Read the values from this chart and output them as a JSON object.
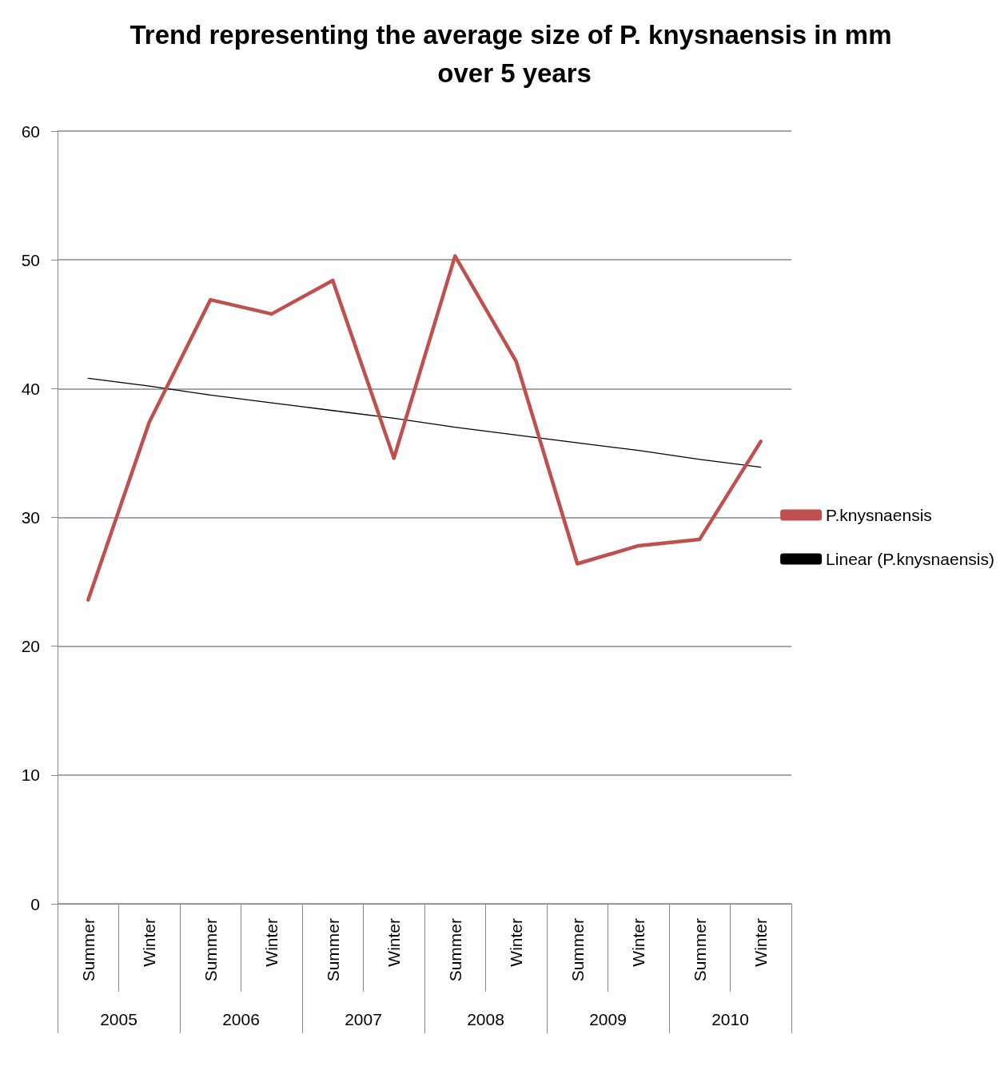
{
  "chart_data": {
    "type": "line",
    "title": "Trend representing the average size of P. knysnaensis in mm over 5 years",
    "categories": [
      "Summer",
      "Winter",
      "Summer",
      "Winter",
      "Summer",
      "Winter",
      "Summer",
      "Winter",
      "Summer",
      "Winter",
      "Summer",
      "Winter"
    ],
    "annotations": [
      "2005",
      "2006",
      "2007",
      "2008",
      "2009",
      "2010"
    ],
    "series": [
      {
        "name": "P.knysnaensis",
        "color": "#c0504d",
        "values": [
          23.6,
          37.4,
          46.9,
          45.8,
          48.4,
          34.6,
          50.3,
          42.1,
          26.4,
          27.8,
          28.3,
          35.9
        ]
      },
      {
        "name": "Linear (P.knysnaensis)",
        "color": "#000000",
        "line_style": "solid",
        "values": [
          40.8,
          40.2,
          39.5,
          38.9,
          38.3,
          37.7,
          37.0,
          36.4,
          35.8,
          35.2,
          34.5,
          33.9
        ]
      }
    ],
    "ylim": [
      0,
      60
    ],
    "yticks": [
      0,
      10,
      20,
      30,
      40,
      50,
      60
    ],
    "grid": "y",
    "legend": "right",
    "marker": "none"
  }
}
